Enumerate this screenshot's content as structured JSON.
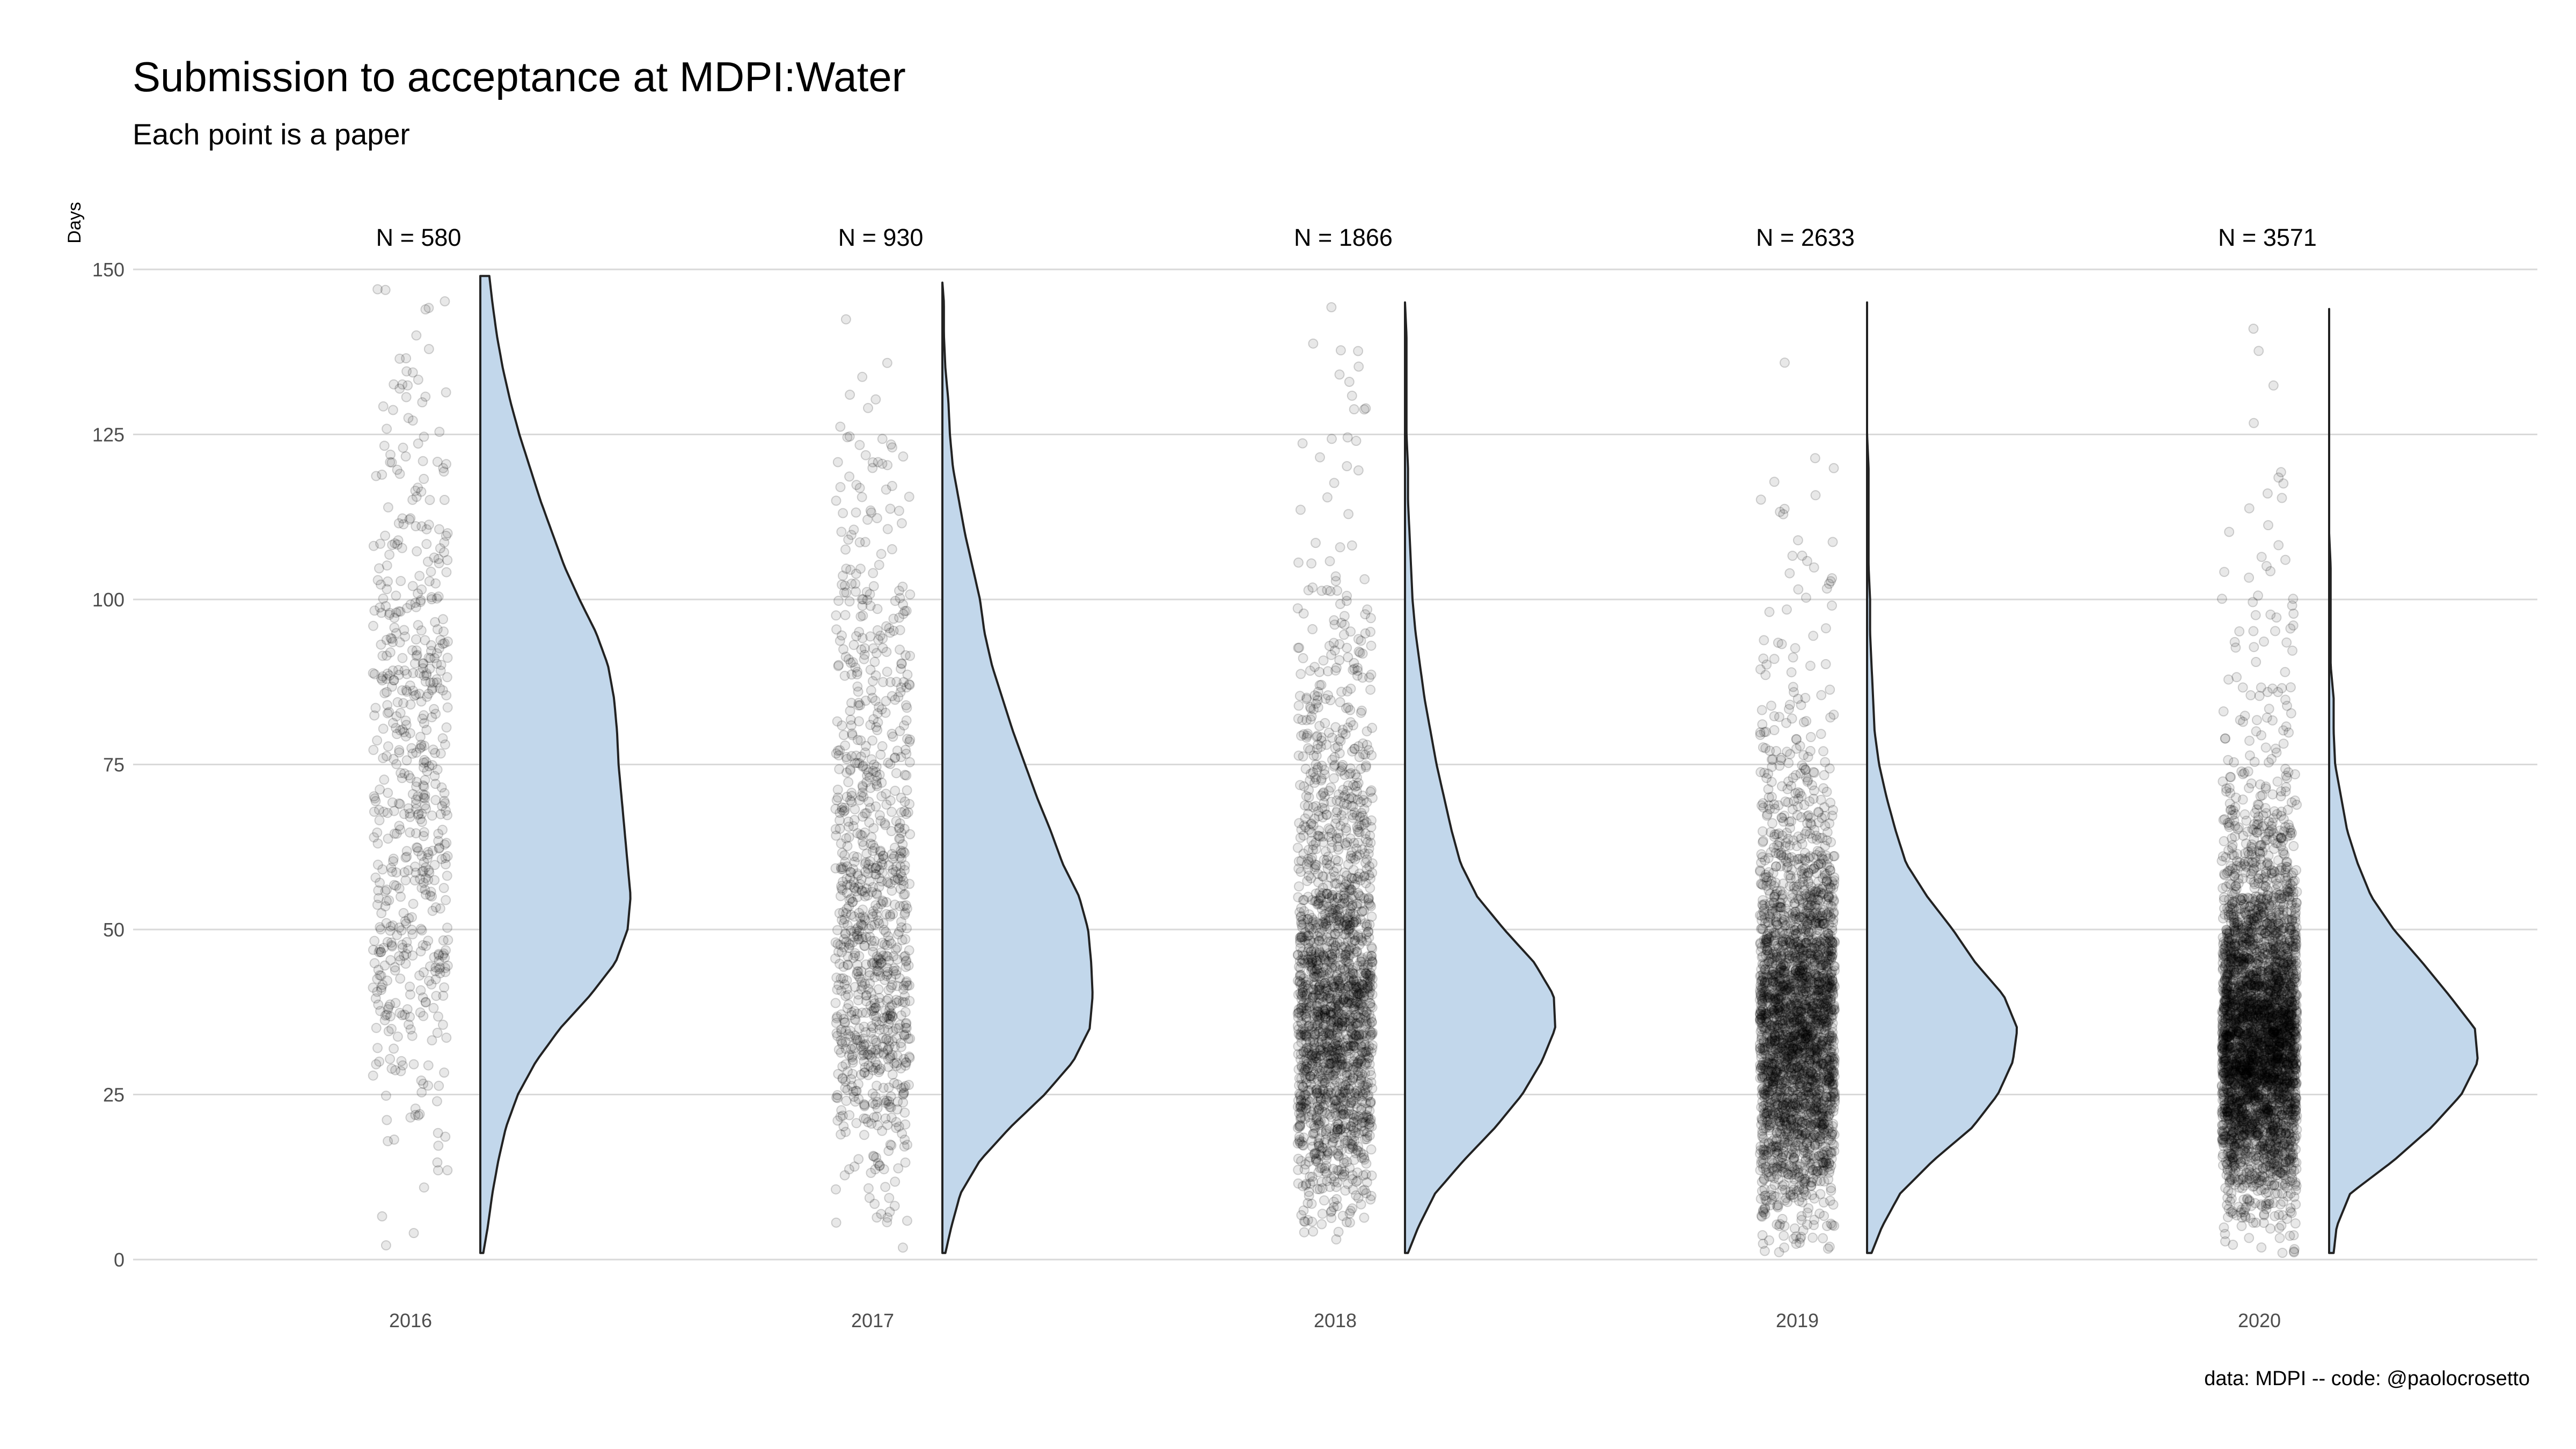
{
  "title": "Submission to acceptance at MDPI:Water",
  "subtitle": "Each point is a paper",
  "caption": "data: MDPI -- code: @paolocrosetto",
  "colors": {
    "violin_fill": "#c2d7eb",
    "violin_stroke": "#222222",
    "points": "#000000",
    "grid": "#d9d9d9",
    "axis_text": "#4d4d4d"
  },
  "chart_data": {
    "type": "raincloud",
    "xlabel": "",
    "ylabel": "Days",
    "ylim": [
      0,
      150
    ],
    "yticks": [
      0,
      25,
      50,
      75,
      100,
      125,
      150
    ],
    "grid": true,
    "legend": "none",
    "categories": [
      "2016",
      "2017",
      "2018",
      "2019",
      "2020"
    ],
    "counts": [
      580,
      930,
      1866,
      2633,
      3571
    ],
    "n_labels": [
      "N = 580",
      "N = 930",
      "N = 1866",
      "N = 2633",
      "N = 3571"
    ],
    "series": [
      {
        "year": "2016",
        "n": 580,
        "min_days": 1,
        "max_days": 149,
        "density_profile": {
          "days": [
            1,
            5,
            10,
            15,
            20,
            25,
            30,
            35,
            40,
            45,
            50,
            55,
            60,
            65,
            70,
            75,
            80,
            85,
            90,
            95,
            100,
            105,
            110,
            115,
            120,
            125,
            130,
            135,
            140,
            145,
            149
          ],
          "relative_density": [
            0.02,
            0.05,
            0.08,
            0.12,
            0.17,
            0.25,
            0.37,
            0.53,
            0.73,
            0.9,
            0.98,
            1.0,
            0.98,
            0.96,
            0.94,
            0.92,
            0.91,
            0.89,
            0.85,
            0.77,
            0.66,
            0.56,
            0.48,
            0.4,
            0.33,
            0.26,
            0.2,
            0.15,
            0.11,
            0.08,
            0.06
          ]
        }
      },
      {
        "year": "2017",
        "n": 930,
        "min_days": 1,
        "max_days": 148,
        "density_profile": {
          "days": [
            1,
            5,
            10,
            15,
            20,
            25,
            30,
            35,
            40,
            45,
            50,
            55,
            60,
            65,
            70,
            75,
            80,
            85,
            90,
            95,
            100,
            105,
            110,
            115,
            120,
            125,
            130,
            135,
            140,
            145,
            148
          ],
          "relative_density": [
            0.02,
            0.06,
            0.12,
            0.25,
            0.45,
            0.68,
            0.87,
            0.98,
            1.0,
            0.99,
            0.97,
            0.91,
            0.8,
            0.72,
            0.63,
            0.55,
            0.47,
            0.4,
            0.33,
            0.28,
            0.25,
            0.2,
            0.15,
            0.11,
            0.07,
            0.05,
            0.04,
            0.02,
            0.01,
            0.01,
            0.0
          ]
        }
      },
      {
        "year": "2018",
        "n": 1866,
        "min_days": 1,
        "max_days": 145,
        "density_profile": {
          "days": [
            1,
            5,
            10,
            15,
            20,
            25,
            30,
            35,
            40,
            45,
            50,
            55,
            60,
            65,
            70,
            75,
            80,
            85,
            90,
            95,
            100,
            105,
            110,
            115,
            120,
            125,
            130,
            135,
            140,
            145
          ],
          "relative_density": [
            0.02,
            0.09,
            0.2,
            0.39,
            0.6,
            0.78,
            0.91,
            1.0,
            0.99,
            0.86,
            0.66,
            0.48,
            0.37,
            0.31,
            0.26,
            0.21,
            0.17,
            0.13,
            0.1,
            0.07,
            0.05,
            0.04,
            0.03,
            0.02,
            0.02,
            0.01,
            0.01,
            0.01,
            0.01,
            0.0
          ]
        }
      },
      {
        "year": "2019",
        "n": 2633,
        "min_days": 1,
        "max_days": 145,
        "density_profile": {
          "days": [
            1,
            5,
            10,
            15,
            20,
            25,
            30,
            35,
            40,
            45,
            50,
            55,
            60,
            65,
            70,
            75,
            80,
            85,
            90,
            95,
            100,
            105,
            110,
            115,
            120,
            125,
            130,
            135,
            140,
            145
          ],
          "relative_density": [
            0.03,
            0.1,
            0.22,
            0.44,
            0.7,
            0.87,
            0.97,
            1.0,
            0.91,
            0.72,
            0.57,
            0.4,
            0.26,
            0.19,
            0.13,
            0.08,
            0.05,
            0.04,
            0.03,
            0.02,
            0.02,
            0.01,
            0.01,
            0.01,
            0.01,
            0.0,
            0.0,
            0.0,
            0.0,
            0.0
          ]
        }
      },
      {
        "year": "2020",
        "n": 3571,
        "min_days": 1,
        "max_days": 144,
        "density_profile": {
          "days": [
            1,
            5,
            10,
            15,
            20,
            25,
            30,
            35,
            40,
            45,
            50,
            55,
            60,
            65,
            70,
            75,
            80,
            85,
            90,
            95,
            100,
            105,
            110,
            115,
            120,
            125,
            130,
            135,
            140,
            144
          ],
          "relative_density": [
            0.03,
            0.05,
            0.14,
            0.43,
            0.68,
            0.88,
            0.99,
            0.97,
            0.8,
            0.62,
            0.43,
            0.28,
            0.19,
            0.12,
            0.08,
            0.04,
            0.03,
            0.03,
            0.01,
            0.01,
            0.01,
            0.01,
            0.0,
            0.0,
            0.0,
            0.0,
            0.0,
            0.0,
            0.0,
            0.0
          ]
        }
      }
    ]
  }
}
